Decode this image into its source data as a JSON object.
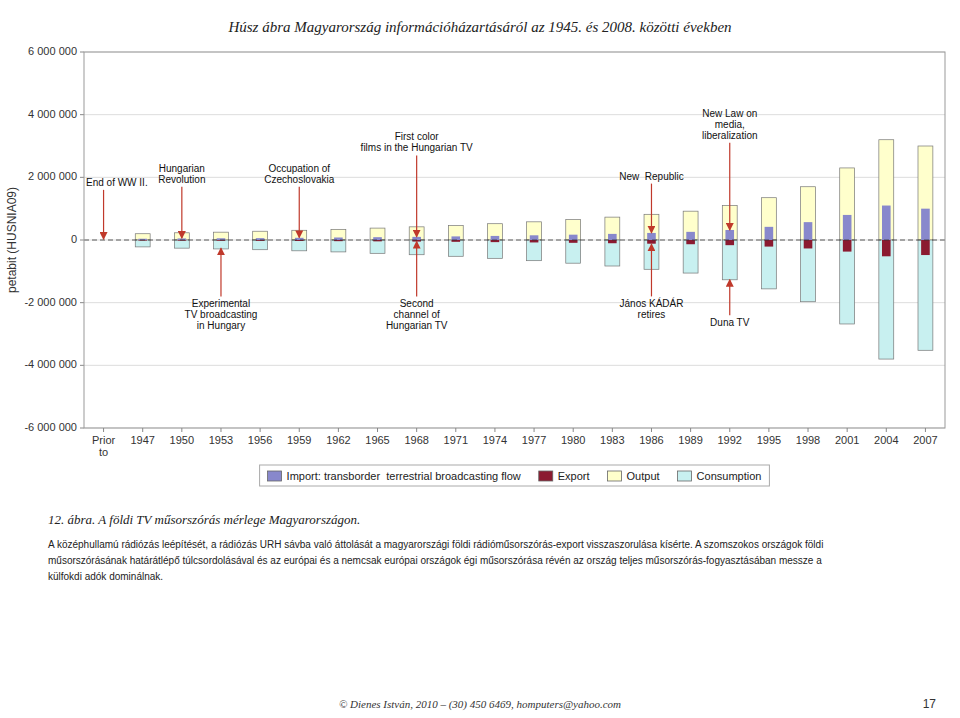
{
  "chart_data": {
    "type": "bar",
    "title": "Húsz ábra Magyarország információházartásáról az 1945. és 2008. közötti években",
    "y_label": "petabit (HUSNIA09)",
    "categories": [
      "Prior\nto",
      "1947",
      "1950",
      "1953",
      "1956",
      "1959",
      "1962",
      "1965",
      "1968",
      "1971",
      "1974",
      "1977",
      "1980",
      "1983",
      "1986",
      "1989",
      "1992",
      "1995",
      "1998",
      "2001",
      "2004",
      "2007"
    ],
    "series": [
      {
        "name": "Import: transborder  terrestrial broadcasting flow",
        "color": "#8888CC",
        "values": [
          0,
          40000,
          50000,
          55000,
          60000,
          70000,
          80000,
          90000,
          100000,
          115000,
          130000,
          150000,
          170000,
          195000,
          225000,
          260000,
          320000,
          420000,
          570000,
          800000,
          1100000,
          1000000
        ]
      },
      {
        "name": "Export",
        "color": "#8B1A30",
        "values": [
          0,
          -18000,
          -22000,
          -25000,
          -28000,
          -32000,
          -37000,
          -43000,
          -50000,
          -58000,
          -68000,
          -78000,
          -90000,
          -103000,
          -118000,
          -135000,
          -165000,
          -210000,
          -270000,
          -370000,
          -520000,
          -480000
        ]
      },
      {
        "name": "Output",
        "color": "#FFFFCC",
        "values": [
          0,
          200000,
          230000,
          250000,
          280000,
          310000,
          340000,
          380000,
          420000,
          460000,
          520000,
          580000,
          650000,
          730000,
          820000,
          920000,
          1100000,
          1350000,
          1700000,
          2300000,
          3200000,
          3000000
        ]
      },
      {
        "name": "Consumption",
        "color": "#C8F0F0",
        "values": [
          0,
          -220000,
          -260000,
          -285000,
          -310000,
          -345000,
          -380000,
          -425000,
          -470000,
          -520000,
          -585000,
          -660000,
          -740000,
          -830000,
          -935000,
          -1055000,
          -1270000,
          -1560000,
          -1970000,
          -2680000,
          -3800000,
          -3520000
        ]
      }
    ],
    "ylim": [
      -6000000,
      6000000
    ],
    "yticks": [
      {
        "value": -6000000,
        "label": "-6 000 000"
      },
      {
        "value": -4000000,
        "label": "-4 000 000"
      },
      {
        "value": -2000000,
        "label": "-2 000 000"
      },
      0,
      {
        "value": 2000000,
        "label": "2 000 000"
      },
      {
        "value": 4000000,
        "label": "4 000 000"
      },
      {
        "value": 6000000,
        "label": "6 000 000"
      }
    ],
    "grid": true,
    "legend": "bottom",
    "annotations": [
      {
        "text": "End of WW II.",
        "x": 0,
        "y": 30000,
        "text_y": 1600000
      },
      {
        "text": "Hungarian\nRevolution",
        "x": 2,
        "y": 60000,
        "text_y": 1700000
      },
      {
        "text": "Occupation of\nCzechoslovakia",
        "x": 5,
        "y": 80000,
        "text_y": 1700000
      },
      {
        "text": "First color\nfilms in the Hungarian TV",
        "x": 8,
        "y": 105000,
        "text_y": 2700000
      },
      {
        "text": "New  Republic",
        "x": 14,
        "y": 230000,
        "text_y": 1800000
      },
      {
        "text": "New Law on\nmedia,\nliberalization",
        "x": 16,
        "y": 320000,
        "text_y": 3100000
      },
      {
        "text": "Experimental\nTV broadcasting\nin Hungary",
        "x": 3,
        "y": -260000,
        "text_y": -1800000
      },
      {
        "text": "Second\nchannel of\nHungarian TV",
        "x": 8,
        "y": -50000,
        "text_y": -1800000
      },
      {
        "text": "János KÁDÁR\nretires",
        "x": 14,
        "y": -135000,
        "text_y": -1800000
      },
      {
        "text": "Duna TV",
        "x": 16,
        "y": -1270000,
        "text_y": -2400000
      }
    ],
    "caption": "12. ábra. A földi TV műsorszórás mérlege Magyarországon.",
    "notes": [
      "A középhullamú rádiózás leépítését, a rádiózás URH sávba való áttolását a magyarországi földi rádióműsorszórás-export visszaszorulása kísérte. A szomszokos országok földi",
      "műsorszórásának határátlépő túlcsordolásával és az európai és a nemcsak európai országok égi műsorszórása révén az ország teljes műsorszórás-fogyasztásában messze a",
      "külfokdi adók dominálnak."
    ],
    "footer": "© Dienes István, 2010 – (30) 450 6469, homputers@yahoo.com",
    "page_number": "17"
  }
}
